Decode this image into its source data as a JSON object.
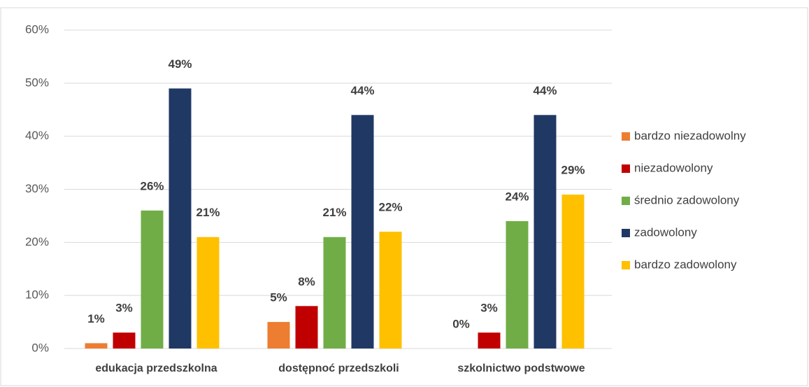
{
  "chart_data": {
    "type": "bar",
    "categories": [
      "edukacja przedszkolna",
      "dostępnoć przedszkoli",
      "szkolnictwo podstwowe"
    ],
    "series": [
      {
        "name": "bardzo niezadowolny",
        "color": "#ed7d31",
        "values": [
          1,
          5,
          0
        ],
        "value_labels": [
          "1%",
          "5%",
          "0%"
        ]
      },
      {
        "name": "niezadowolony",
        "color": "#c00000",
        "values": [
          3,
          8,
          3
        ],
        "value_labels": [
          "3%",
          "8%",
          "3%"
        ]
      },
      {
        "name": "średnio zadowolony",
        "color": "#70ad47",
        "values": [
          26,
          21,
          24
        ],
        "value_labels": [
          "26%",
          "21%",
          "24%"
        ]
      },
      {
        "name": "zadowolony",
        "color": "#203864",
        "values": [
          49,
          44,
          44
        ],
        "value_labels": [
          "49%",
          "44%",
          "44%"
        ]
      },
      {
        "name": "bardzo zadowolony",
        "color": "#ffc000",
        "values": [
          21,
          22,
          29
        ],
        "value_labels": [
          "21%",
          "22%",
          "29%"
        ]
      }
    ],
    "ylim": [
      0,
      60
    ],
    "yticks": [
      {
        "value": 0,
        "label": "0%"
      },
      {
        "value": 10,
        "label": "10%"
      },
      {
        "value": 20,
        "label": "20%"
      },
      {
        "value": 30,
        "label": "30%"
      },
      {
        "value": 40,
        "label": "40%"
      },
      {
        "value": 50,
        "label": "50%"
      },
      {
        "value": 60,
        "label": "60%"
      }
    ],
    "grid": true,
    "legend": "right"
  }
}
